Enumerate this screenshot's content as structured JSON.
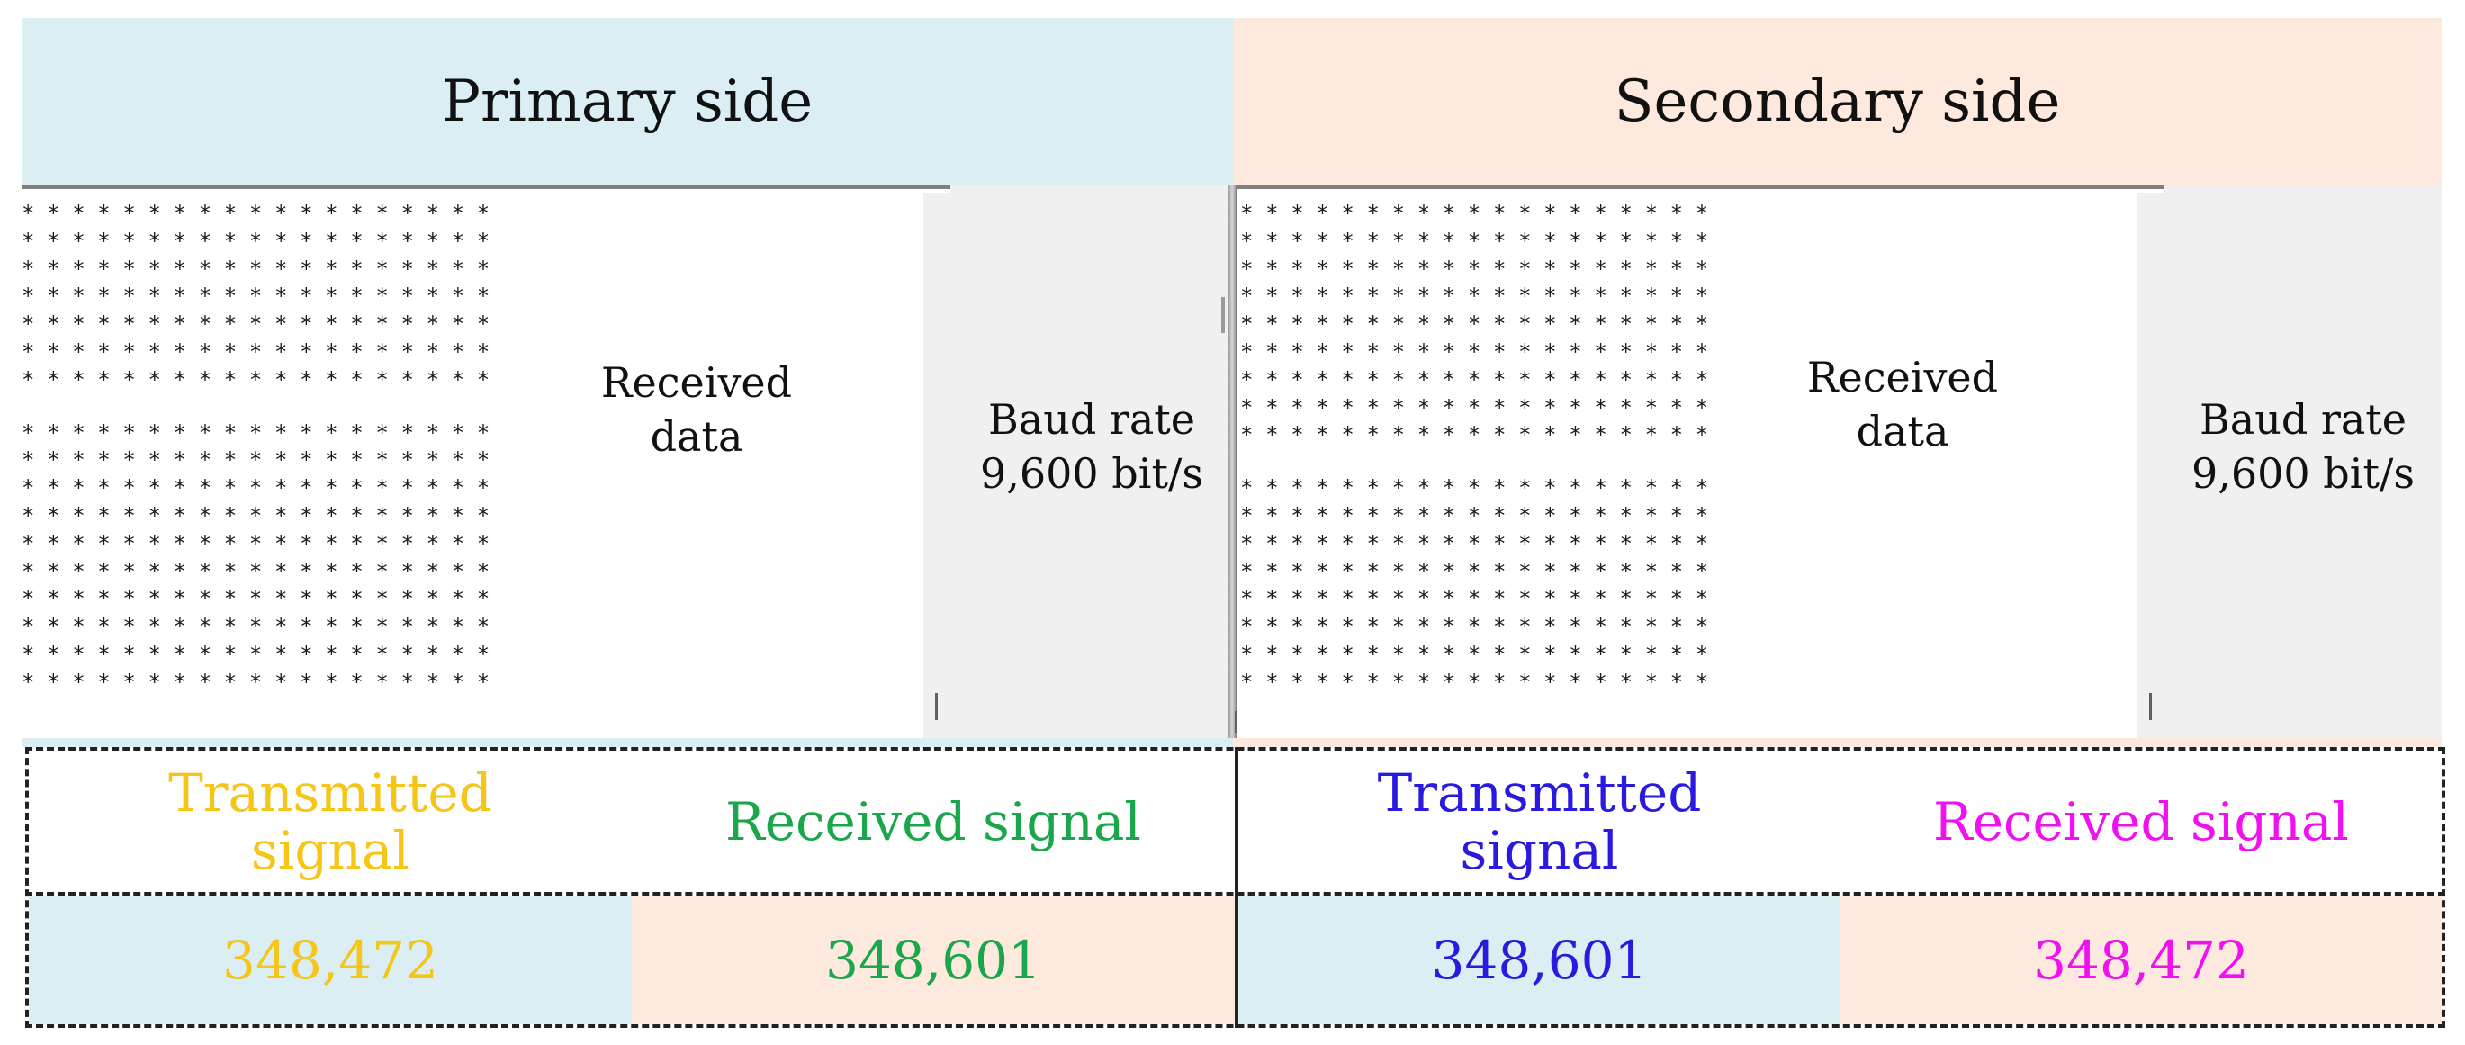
{
  "primary": {
    "title": "Primary side",
    "received_label": "Received\ndata",
    "baud_rate_label": "Baud rate",
    "baud_rate_value": "9,600 bit/s"
  },
  "secondary": {
    "title": "Secondary side",
    "received_label": "Received\ndata",
    "baud_rate_label": "Baud rate",
    "baud_rate_value": "9,600 bit/s"
  },
  "table": {
    "primary_tx_label": "Transmitted\nsignal",
    "primary_rx_label": "Received signal",
    "secondary_tx_label": "Transmitted\nsignal",
    "secondary_rx_label": "Received signal",
    "primary_tx_value": "348,472",
    "primary_rx_value": "348,601",
    "secondary_tx_value": "348,601",
    "secondary_rx_value": "348,472"
  },
  "colors": {
    "primary_tx": "#f5c518",
    "primary_rx": "#1aa64a",
    "secondary_tx": "#2a1ae0",
    "secondary_rx": "#f010f0",
    "primary_bg": "#daeef3",
    "secondary_bg": "#fde9dd"
  },
  "received_text": {
    "primary_lines": [
      "*******************",
      "*******************",
      "*******************",
      "*******************",
      "*******************",
      "*******************",
      "*******************",
      "",
      "*******************",
      "*******************",
      "*******************",
      "*******************",
      "*******************",
      "*******************",
      "*******************",
      "*******************",
      "*******************",
      "*******************"
    ],
    "secondary_lines": [
      "*******************",
      "*******************",
      "*******************",
      "*******************",
      "*******************",
      "*******************",
      "*******************",
      "*******************",
      "*******************",
      "",
      "*******************",
      "*******************",
      "*******************",
      "*******************",
      "*******************",
      "*******************",
      "*******************",
      "*******************"
    ]
  }
}
